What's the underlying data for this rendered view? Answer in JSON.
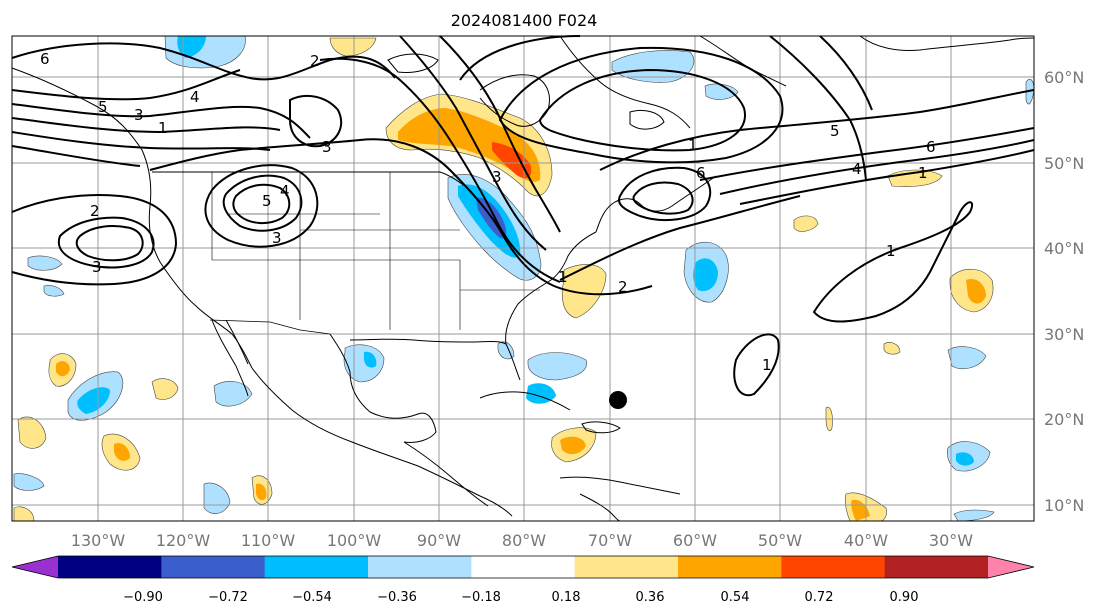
{
  "title": "2024081400 F024",
  "map": {
    "lon_labels": [
      "130°W",
      "120°W",
      "110°W",
      "100°W",
      "90°W",
      "80°W",
      "70°W",
      "60°W",
      "50°W",
      "40°W",
      "30°W"
    ],
    "lat_labels": [
      "60°N",
      "50°N",
      "40°N",
      "30°N",
      "20°N",
      "10°N"
    ]
  },
  "contour_labels": [
    "6",
    "5",
    "3",
    "1",
    "4",
    "3",
    "2",
    "4",
    "5",
    "2",
    "3",
    "3",
    "1",
    "1",
    "6",
    "6",
    "1",
    "2",
    "1",
    "1",
    "5",
    "4",
    "3"
  ],
  "colorbar": {
    "tick_labels": [
      "−0.90",
      "−0.72",
      "−0.54",
      "−0.36",
      "−0.18",
      "0.18",
      "0.36",
      "0.54",
      "0.72",
      "0.90"
    ],
    "colors": [
      "#9b30d0",
      "#000080",
      "#3a5fcd",
      "#00bfff",
      "#aee0ff",
      "#ffffff",
      "#ffe68a",
      "#ffa500",
      "#ff4500",
      "#b22222",
      "#ff82ab"
    ]
  },
  "colors": {
    "neg_light": "#aee0ff",
    "neg_mid": "#00bfff",
    "neg_dark": "#3a5fcd",
    "pos_light": "#ffe68a",
    "pos_mid": "#ffa500",
    "pos_dark": "#ff4500"
  }
}
